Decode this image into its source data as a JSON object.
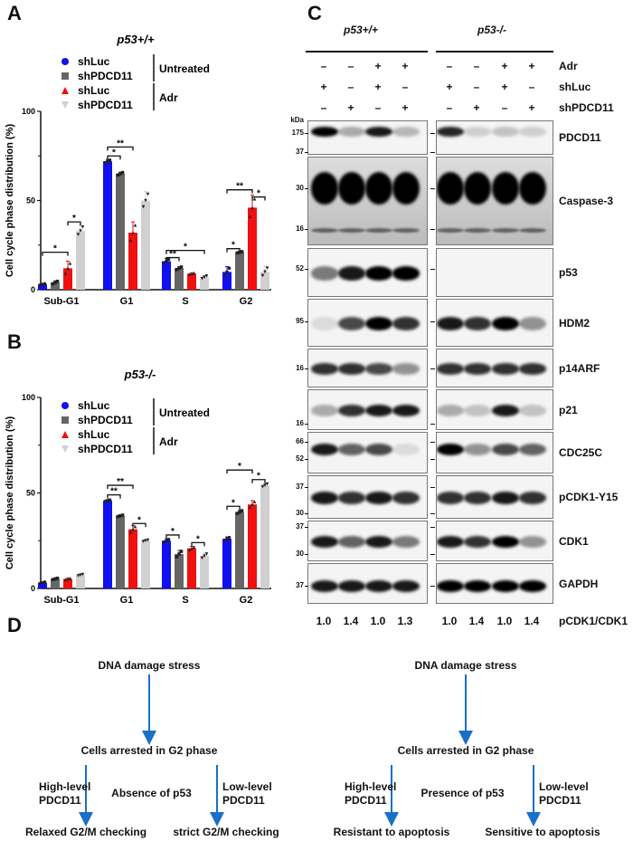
{
  "panels": {
    "a": "A",
    "b": "B",
    "c": "C",
    "d": "D"
  },
  "chart_data": [
    {
      "type": "bar",
      "title": "p53+/+",
      "ylabel": "Cell cycle phase distribution (%)",
      "ylim": [
        0,
        100
      ],
      "yticks": [
        "0",
        "50",
        "100"
      ],
      "categories": [
        "Sub-G1",
        "G1",
        "S",
        "G2"
      ],
      "series": [
        {
          "name": "shLuc",
          "group": "Untreated",
          "color": "#1010f0",
          "marker": "circle",
          "values": [
            3,
            72,
            16,
            10
          ],
          "err": [
            0.5,
            1,
            1.5,
            3
          ]
        },
        {
          "name": "shPDCD11",
          "group": "Untreated",
          "color": "#666666",
          "marker": "square",
          "values": [
            4,
            65,
            12,
            21
          ],
          "err": [
            1,
            1,
            1,
            0.5
          ]
        },
        {
          "name": "shLuc",
          "group": "Adr",
          "color": "#f01010",
          "marker": "triangle-up",
          "values": [
            12,
            32,
            9,
            46
          ],
          "err": [
            4,
            6,
            0.5,
            7
          ]
        },
        {
          "name": "shPDCD11",
          "group": "Adr",
          "color": "#d0d0d0",
          "marker": "triangle-down",
          "values": [
            33,
            50,
            7,
            10
          ],
          "err": [
            3,
            5,
            1,
            3
          ]
        }
      ],
      "legend_groups": [
        "Untreated",
        "Adr"
      ],
      "significance": [
        {
          "category": "Sub-G1",
          "from": 2,
          "to": 3,
          "label": "*",
          "y": 38
        },
        {
          "category": "Sub-G1",
          "from": 0,
          "to": 2,
          "label": "*",
          "y": 21
        },
        {
          "category": "G1",
          "from": 0,
          "to": 1,
          "label": "*",
          "y": 75
        },
        {
          "category": "G1",
          "from": 0,
          "to": 2,
          "label": "**",
          "y": 80
        },
        {
          "category": "S",
          "from": 0,
          "to": 1,
          "label": "**",
          "y": 18
        },
        {
          "category": "S",
          "from": 0,
          "to": 3,
          "label": "*",
          "y": 22
        },
        {
          "category": "G2",
          "from": 0,
          "to": 1,
          "label": "*",
          "y": 23
        },
        {
          "category": "G2",
          "from": 0,
          "to": 2,
          "label": "**",
          "y": 56
        },
        {
          "category": "G2",
          "from": 2,
          "to": 3,
          "label": "*",
          "y": 52
        }
      ],
      "legend": "top-left"
    },
    {
      "type": "bar",
      "title": "p53-/-",
      "ylabel": "Cell cycle phase distribution (%)",
      "ylim": [
        0,
        100
      ],
      "yticks": [
        "0",
        "50",
        "100"
      ],
      "categories": [
        "Sub-G1",
        "G1",
        "S",
        "G2"
      ],
      "series": [
        {
          "name": "shLuc",
          "group": "Untreated",
          "color": "#1010f0",
          "marker": "circle",
          "values": [
            3,
            46,
            25,
            26
          ],
          "err": [
            0.5,
            0.5,
            1,
            1
          ]
        },
        {
          "name": "shPDCD11",
          "group": "Untreated",
          "color": "#666666",
          "marker": "square",
          "values": [
            5,
            38,
            18,
            40
          ],
          "err": [
            0.5,
            0.5,
            2,
            1
          ]
        },
        {
          "name": "shLuc",
          "group": "Adr",
          "color": "#f01010",
          "marker": "triangle-up",
          "values": [
            5,
            31,
            21,
            44
          ],
          "err": [
            0.5,
            2,
            1,
            2
          ]
        },
        {
          "name": "shPDCD11",
          "group": "Adr",
          "color": "#d0d0d0",
          "marker": "triangle-down",
          "values": [
            7,
            25,
            17,
            54
          ],
          "err": [
            0.5,
            0.5,
            1.5,
            1
          ]
        }
      ],
      "legend_groups": [
        "Untreated",
        "Adr"
      ],
      "significance": [
        {
          "category": "G1",
          "from": 0,
          "to": 1,
          "label": "**",
          "y": 49
        },
        {
          "category": "G1",
          "from": 0,
          "to": 2,
          "label": "**",
          "y": 54
        },
        {
          "category": "G1",
          "from": 2,
          "to": 3,
          "label": "*",
          "y": 34
        },
        {
          "category": "S",
          "from": 0,
          "to": 1,
          "label": "*",
          "y": 28
        },
        {
          "category": "S",
          "from": 2,
          "to": 3,
          "label": "*",
          "y": 24
        },
        {
          "category": "G2",
          "from": 0,
          "to": 1,
          "label": "*",
          "y": 43
        },
        {
          "category": "G2",
          "from": 0,
          "to": 2,
          "label": "*",
          "y": 62
        },
        {
          "category": "G2",
          "from": 2,
          "to": 3,
          "label": "*",
          "y": 57
        }
      ],
      "legend": "top-left"
    }
  ],
  "blot": {
    "groups": [
      "p53+/+",
      "p53-/-"
    ],
    "conditions": [
      {
        "label": "Adr",
        "signs": [
          "–",
          "–",
          "+",
          "+",
          "–",
          "–",
          "+",
          "+"
        ]
      },
      {
        "label": "shLuc",
        "signs": [
          "+",
          "–",
          "+",
          "–",
          "+",
          "–",
          "+",
          "–"
        ]
      },
      {
        "label": "shPDCD11",
        "signs": [
          "–",
          "+",
          "–",
          "+",
          "–",
          "+",
          "–",
          "+"
        ]
      }
    ],
    "kda_label": "kDa",
    "rows": [
      {
        "label": "PDCD11",
        "markers": [
          "175"
        ]
      },
      {
        "label": "Caspase-3",
        "markers": [
          "37",
          "30",
          "16"
        ]
      },
      {
        "label": "p53",
        "markers": [
          "52"
        ]
      },
      {
        "label": "HDM2",
        "markers": [
          "95"
        ]
      },
      {
        "label": "p14ARF",
        "markers": [
          "16"
        ]
      },
      {
        "label": "p21",
        "markers": [
          "16"
        ]
      },
      {
        "label": "CDC25C",
        "markers": [
          "66",
          "52"
        ]
      },
      {
        "label": "pCDK1-Y15",
        "markers": [
          "37",
          "30"
        ]
      },
      {
        "label": "CDK1",
        "markers": [
          "37",
          "30"
        ]
      },
      {
        "label": "GAPDH",
        "markers": [
          "37"
        ]
      }
    ],
    "ratio_label": "pCDK1/CDK1",
    "ratios": [
      "1.0",
      "1.4",
      "1.0",
      "1.3",
      "1.0",
      "1.4",
      "1.0",
      "1.4"
    ]
  },
  "model": {
    "arrow_color": "#1a6fc9",
    "left": {
      "top": "DNA damage stress",
      "middle": "Cells arrested in G2 phase",
      "left_branch": [
        "High-level",
        "PDCD11"
      ],
      "center": "Absence of p53",
      "right_branch": [
        "Low-level",
        "PDCD11"
      ],
      "left_outcome": "Relaxed G2/M checking",
      "right_outcome": "strict G2/M checking"
    },
    "right": {
      "top": "DNA damage stress",
      "middle": "Cells arrested in G2 phase",
      "left_branch": [
        "High-level",
        "PDCD11"
      ],
      "center": "Presence of p53",
      "right_branch": [
        "Low-level",
        "PDCD11"
      ],
      "left_outcome": "Resistant to apoptosis",
      "right_outcome": "Sensitive to apoptosis"
    }
  }
}
